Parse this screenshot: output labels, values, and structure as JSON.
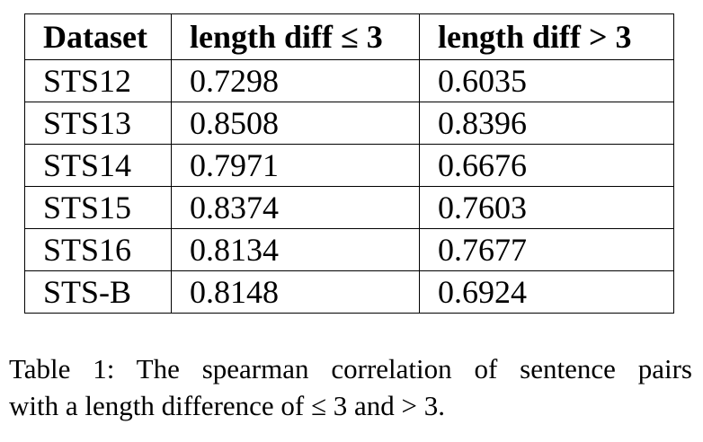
{
  "table": {
    "headers": [
      "Dataset",
      "length diff ≤ 3",
      "length diff > 3"
    ],
    "rows": [
      [
        "STS12",
        "0.7298",
        "0.6035"
      ],
      [
        "STS13",
        "0.8508",
        "0.8396"
      ],
      [
        "STS14",
        "0.7971",
        "0.6676"
      ],
      [
        "STS15",
        "0.8374",
        "0.7603"
      ],
      [
        "STS16",
        "0.8134",
        "0.7677"
      ],
      [
        "STS-B",
        "0.8148",
        "0.6924"
      ]
    ]
  },
  "caption": {
    "line1": "Table 1: The spearman correlation of sentence pairs",
    "line2": "with a length difference of ≤ 3 and > 3."
  }
}
